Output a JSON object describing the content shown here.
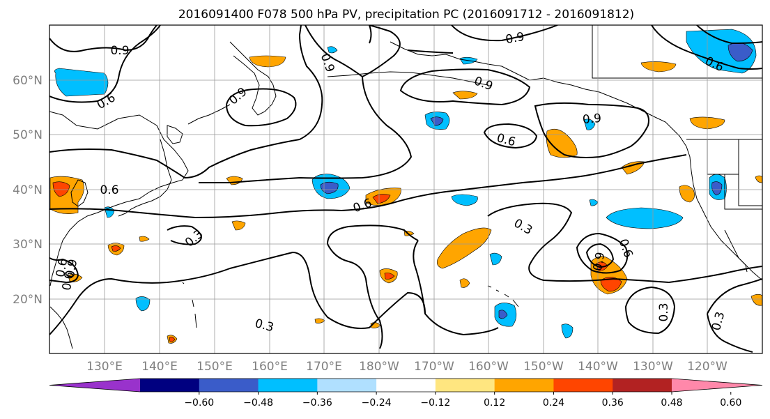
{
  "title": "2016091400 F078 500 hPa PV, precipitation PC (2016091712 - 2016091812)",
  "latitude_labels": [
    "60°N",
    "50°N",
    "40°N",
    "30°N",
    "20°N"
  ],
  "longitude_labels": [
    "130°E",
    "140°E",
    "150°E",
    "160°E",
    "170°E",
    "180°W",
    "170°W",
    "160°W",
    "150°W",
    "140°W",
    "130°W",
    "120°W"
  ],
  "colorbar": {
    "tick_labels": [
      "−0.60",
      "−0.48",
      "−0.36",
      "−0.24",
      "−0.12",
      "0.12",
      "0.24",
      "0.36",
      "0.48",
      "0.60"
    ],
    "colors": [
      "#9932CC",
      "#000080",
      "#3A5CC9",
      "#00BFFF",
      "#B0E0FF",
      "#FFFFFF",
      "#FFE680",
      "#FFA500",
      "#FF4500",
      "#B22222",
      "#FF88AA"
    ]
  },
  "contour_labels": [
    {
      "text": "0.9"
    },
    {
      "text": "0.9"
    },
    {
      "text": "0.9"
    },
    {
      "text": "0.9"
    },
    {
      "text": "0.9"
    },
    {
      "text": "0.9"
    },
    {
      "text": "0.6"
    },
    {
      "text": "0.6"
    },
    {
      "text": "0.6"
    },
    {
      "text": "0.6"
    },
    {
      "text": "0.6"
    },
    {
      "text": "0.6"
    },
    {
      "text": "0.6"
    },
    {
      "text": "0.3"
    },
    {
      "text": "0.3"
    },
    {
      "text": "0.3"
    },
    {
      "text": "0.3"
    },
    {
      "text": "0.3"
    },
    {
      "text": "0.9"
    },
    {
      "text": "0.9"
    },
    {
      "text": "0.6"
    }
  ]
}
